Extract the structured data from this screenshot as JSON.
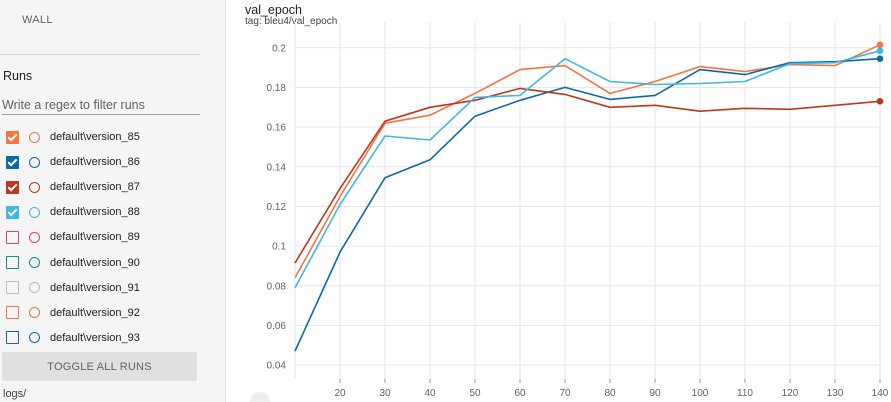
{
  "sidebar": {
    "wall_label": "WALL",
    "runs_title": "Runs",
    "filter_placeholder": "Write a regex to filter runs",
    "runs": [
      {
        "label": "default\\version_85",
        "color": "#f4753f",
        "checked": true
      },
      {
        "label": "default\\version_86",
        "color": "#0b6aa8",
        "checked": true
      },
      {
        "label": "default\\version_87",
        "color": "#c0361b",
        "checked": true
      },
      {
        "label": "default\\version_88",
        "color": "#3fb8e5",
        "checked": true
      },
      {
        "label": "default\\version_89",
        "color": "#e0407e",
        "checked": false
      },
      {
        "label": "default\\version_90",
        "color": "#0f8f84",
        "checked": false
      },
      {
        "label": "default\\version_91",
        "color": "#bdbdbd",
        "checked": false
      },
      {
        "label": "default\\version_92",
        "color": "#f4753f",
        "checked": false
      },
      {
        "label": "default\\version_93",
        "color": "#0b6aa8",
        "checked": false
      }
    ],
    "toggle_label": "TOGGLE ALL RUNS",
    "logdir": "logs/"
  },
  "chart": {
    "title": "val_epoch",
    "tag": "tag: bleu4/val_epoch"
  },
  "chart_data": {
    "type": "line",
    "x": [
      10,
      20,
      30,
      40,
      50,
      60,
      70,
      80,
      90,
      100,
      110,
      120,
      130,
      140
    ],
    "xticks": [
      20,
      30,
      40,
      50,
      60,
      70,
      80,
      90,
      100,
      110,
      120,
      130,
      140
    ],
    "yticks": [
      0.04,
      0.06,
      0.08,
      0.1,
      0.12,
      0.14,
      0.16,
      0.18,
      0.2
    ],
    "xlim": [
      10,
      140
    ],
    "ylim": [
      0.033,
      0.213
    ],
    "grid": true,
    "series": [
      {
        "run": "default\\version_85",
        "color": "#f4753f",
        "values": [
          0.084,
          0.125,
          0.162,
          0.166,
          0.177,
          0.189,
          0.191,
          0.177,
          0.183,
          0.1905,
          0.188,
          0.1915,
          0.191,
          0.2015
        ]
      },
      {
        "run": "default\\version_86",
        "color": "#0b6aa8",
        "values": [
          0.047,
          0.097,
          0.1345,
          0.1435,
          0.1655,
          0.1735,
          0.18,
          0.174,
          0.176,
          0.189,
          0.1865,
          0.1925,
          0.193,
          0.1945
        ]
      },
      {
        "run": "default\\version_87",
        "color": "#c0361b",
        "values": [
          0.0915,
          0.129,
          0.163,
          0.17,
          0.1735,
          0.1795,
          0.1765,
          0.17,
          0.171,
          0.168,
          0.1695,
          0.169,
          0.171,
          0.173
        ]
      },
      {
        "run": "default\\version_88",
        "color": "#3fb8e5",
        "values": [
          0.079,
          0.121,
          0.1555,
          0.1535,
          0.175,
          0.176,
          0.1945,
          0.183,
          0.1815,
          0.182,
          0.183,
          0.192,
          0.1925,
          0.1985
        ]
      }
    ]
  }
}
